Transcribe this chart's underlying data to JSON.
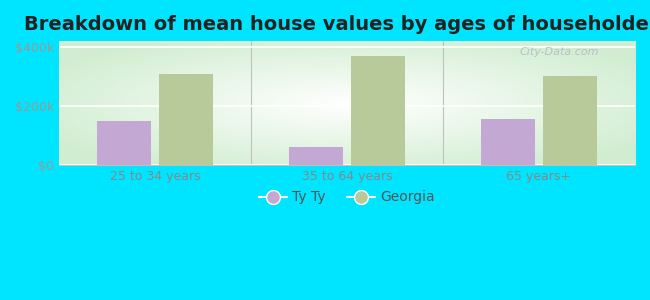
{
  "title": "Breakdown of mean house values by ages of householders",
  "categories": [
    "25 to 34 years",
    "35 to 64 years",
    "65 years+"
  ],
  "tyty_values": [
    150000,
    60000,
    155000
  ],
  "georgia_values": [
    310000,
    370000,
    300000
  ],
  "tyty_color": "#c4a8d4",
  "georgia_color": "#b8c99a",
  "background_outer": "#00e5ff",
  "ylim": [
    0,
    420000
  ],
  "yticks": [
    0,
    200000,
    400000
  ],
  "ytick_labels": [
    "$0",
    "$200k",
    "$400k"
  ],
  "legend_tyty": "Ty Ty",
  "legend_georgia": "Georgia",
  "title_fontsize": 14,
  "bar_width": 0.28,
  "watermark": "City-Data.com",
  "tick_color": "#999999",
  "axis_label_color": "#888888",
  "separator_color": "#c0c0c0"
}
